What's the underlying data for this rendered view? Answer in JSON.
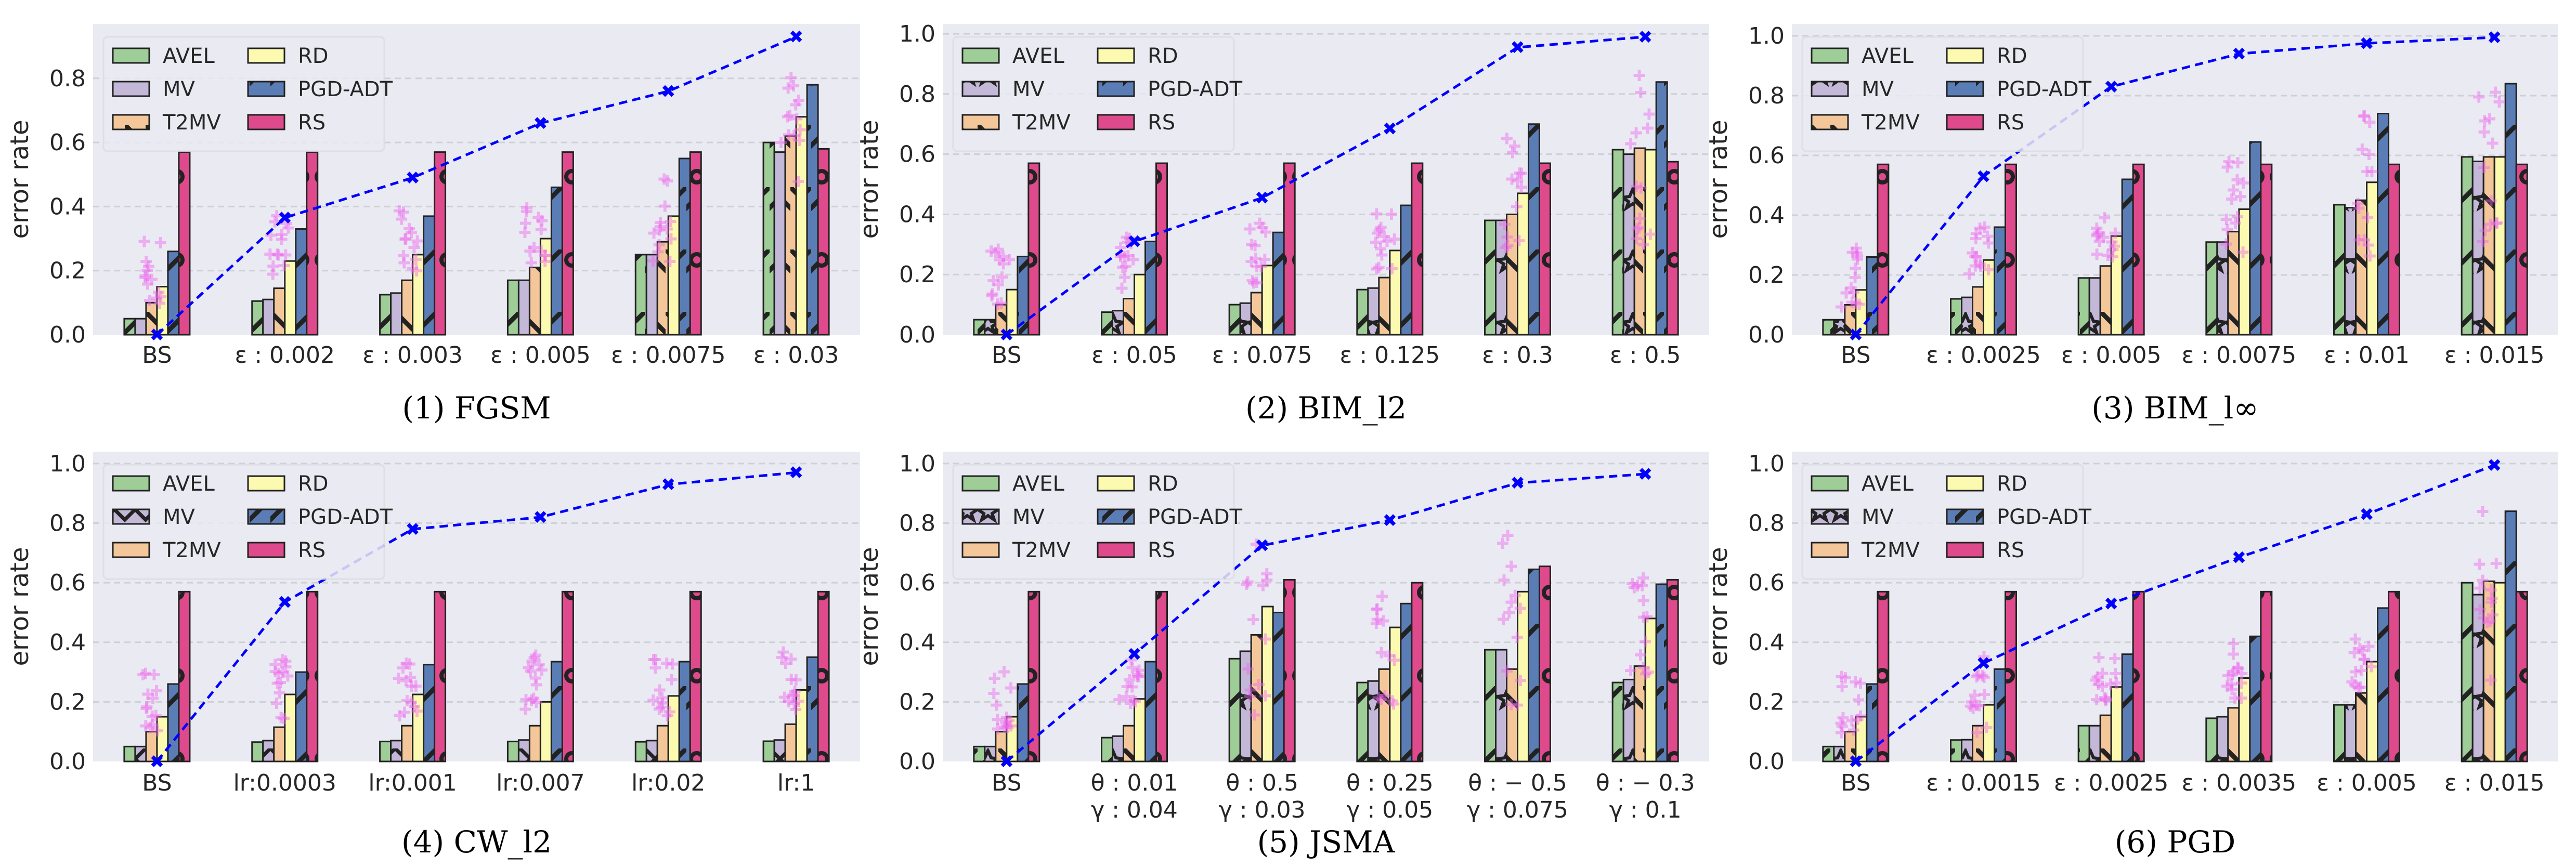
{
  "figure": {
    "legend_labels": [
      "AVEL",
      "MV",
      "T2MV",
      "RD",
      "PGD-ADT",
      "RS"
    ]
  },
  "chart_data": [
    {
      "type": "bar",
      "title": "(1) FGSM",
      "xlabel": "",
      "ylabel": "error rate",
      "ylim": [
        0,
        0.97
      ],
      "yticks": [
        0.0,
        0.2,
        0.4,
        0.6,
        0.8
      ],
      "ytick_labels": [
        "0.0",
        "0.2",
        "0.4",
        "0.6",
        "0.8"
      ],
      "grid": true,
      "legend": "top-left",
      "categories": [
        [
          "BS"
        ],
        [
          "ε : 0.002"
        ],
        [
          "ε : 0.003"
        ],
        [
          "ε : 0.005"
        ],
        [
          "ε : 0.0075"
        ],
        [
          "ε : 0.03"
        ]
      ],
      "series": [
        {
          "name": "AVEL",
          "color": "#9ecd97",
          "hatch": "/",
          "values": [
            0.05,
            0.105,
            0.125,
            0.17,
            0.25,
            0.6
          ]
        },
        {
          "name": "MV",
          "color": "#c3b8d8",
          "hatch": "",
          "values": [
            0.05,
            0.11,
            0.13,
            0.17,
            0.25,
            0.57
          ]
        },
        {
          "name": "T2MV",
          "color": "#f4c79a",
          "hatch": "\\",
          "values": [
            0.1,
            0.145,
            0.17,
            0.21,
            0.29,
            0.62
          ]
        },
        {
          "name": "RD",
          "color": "#fbfab0",
          "hatch": "",
          "values": [
            0.15,
            0.23,
            0.25,
            0.3,
            0.37,
            0.68
          ]
        },
        {
          "name": "PGD-ADT",
          "color": "#5b7db6",
          "hatch": "/",
          "values": [
            0.26,
            0.33,
            0.37,
            0.46,
            0.55,
            0.78
          ]
        },
        {
          "name": "RS",
          "color": "#de4a8b",
          "hatch": "o",
          "values": [
            0.57,
            0.57,
            0.57,
            0.57,
            0.57,
            0.58
          ]
        }
      ],
      "line": {
        "name": "attack success",
        "color": "#0000ff",
        "style": "dashed",
        "marker": "x",
        "values": [
          0.0,
          0.365,
          0.49,
          0.66,
          0.76,
          0.93
        ]
      },
      "scatter": {
        "color": "#ee66ee",
        "marker": "+",
        "ranges": [
          [
            0.09,
            0.31
          ],
          [
            0.17,
            0.37
          ],
          [
            0.19,
            0.39
          ],
          [
            0.22,
            0.44
          ],
          [
            0.22,
            0.49
          ],
          [
            0.45,
            0.83
          ]
        ]
      }
    },
    {
      "type": "bar",
      "title": "(2) BIM_l2",
      "xlabel": "",
      "ylabel": "error rate",
      "ylim": [
        0,
        1.033
      ],
      "yticks": [
        0.0,
        0.2,
        0.4,
        0.6,
        0.8,
        1.0
      ],
      "ytick_labels": [
        "0.0",
        "0.2",
        "0.4",
        "0.6",
        "0.8",
        "1.0"
      ],
      "grid": true,
      "legend": "top-left",
      "categories": [
        [
          "BS"
        ],
        [
          "ε : 0.05"
        ],
        [
          "ε : 0.075"
        ],
        [
          "ε : 0.125"
        ],
        [
          "ε : 0.3"
        ],
        [
          "ε : 0.5"
        ]
      ],
      "series": [
        {
          "name": "AVEL",
          "color": "#9ecd97",
          "hatch": "/",
          "values": [
            0.05,
            0.075,
            0.1,
            0.15,
            0.38,
            0.615
          ]
        },
        {
          "name": "MV",
          "color": "#c3b8d8",
          "hatch": "*",
          "values": [
            0.05,
            0.08,
            0.105,
            0.155,
            0.38,
            0.6
          ]
        },
        {
          "name": "T2MV",
          "color": "#f4c79a",
          "hatch": "\\",
          "values": [
            0.1,
            0.12,
            0.14,
            0.19,
            0.4,
            0.62
          ]
        },
        {
          "name": "RD",
          "color": "#fbfab0",
          "hatch": "",
          "values": [
            0.15,
            0.2,
            0.23,
            0.28,
            0.47,
            0.615
          ]
        },
        {
          "name": "PGD-ADT",
          "color": "#5b7db6",
          "hatch": "/",
          "values": [
            0.26,
            0.31,
            0.34,
            0.43,
            0.7,
            0.84
          ]
        },
        {
          "name": "RS",
          "color": "#de4a8b",
          "hatch": "o",
          "values": [
            0.57,
            0.57,
            0.57,
            0.57,
            0.57,
            0.575
          ]
        }
      ],
      "line": {
        "name": "attack success",
        "color": "#0000ff",
        "style": "dashed",
        "marker": "x",
        "values": [
          0.0,
          0.31,
          0.455,
          0.685,
          0.955,
          0.99
        ]
      },
      "scatter": {
        "color": "#ee66ee",
        "marker": "+",
        "ranges": [
          [
            0.09,
            0.3
          ],
          [
            0.13,
            0.35
          ],
          [
            0.16,
            0.37
          ],
          [
            0.2,
            0.41
          ],
          [
            0.28,
            0.66
          ],
          [
            0.28,
            0.86
          ]
        ]
      }
    },
    {
      "type": "bar",
      "title": "(3) BIM_l∞",
      "xlabel": "",
      "ylabel": "error rate",
      "ylim": [
        0,
        1.04
      ],
      "yticks": [
        0.0,
        0.2,
        0.4,
        0.6,
        0.8,
        1.0
      ],
      "ytick_labels": [
        "0.0",
        "0.2",
        "0.4",
        "0.6",
        "0.8",
        "1.0"
      ],
      "grid": true,
      "legend": "top-left",
      "categories": [
        [
          "BS"
        ],
        [
          "ε : 0.0025"
        ],
        [
          "ε : 0.005"
        ],
        [
          "ε : 0.0075"
        ],
        [
          "ε : 0.01"
        ],
        [
          "ε : 0.015"
        ]
      ],
      "series": [
        {
          "name": "AVEL",
          "color": "#9ecd97",
          "hatch": "/",
          "values": [
            0.05,
            0.12,
            0.19,
            0.31,
            0.435,
            0.595
          ]
        },
        {
          "name": "MV",
          "color": "#c3b8d8",
          "hatch": "*",
          "values": [
            0.05,
            0.125,
            0.19,
            0.31,
            0.425,
            0.58
          ]
        },
        {
          "name": "T2MV",
          "color": "#f4c79a",
          "hatch": "\\",
          "values": [
            0.1,
            0.16,
            0.23,
            0.345,
            0.45,
            0.595
          ]
        },
        {
          "name": "RD",
          "color": "#fbfab0",
          "hatch": "",
          "values": [
            0.15,
            0.25,
            0.33,
            0.42,
            0.51,
            0.595
          ]
        },
        {
          "name": "PGD-ADT",
          "color": "#5b7db6",
          "hatch": "/",
          "values": [
            0.26,
            0.36,
            0.52,
            0.645,
            0.74,
            0.84
          ]
        },
        {
          "name": "RS",
          "color": "#de4a8b",
          "hatch": "o",
          "values": [
            0.57,
            0.57,
            0.57,
            0.57,
            0.57,
            0.57
          ]
        }
      ],
      "line": {
        "name": "attack success",
        "color": "#0000ff",
        "style": "dashed",
        "marker": "x",
        "values": [
          0.0,
          0.53,
          0.83,
          0.94,
          0.975,
          0.995
        ]
      },
      "scatter": {
        "color": "#ee66ee",
        "marker": "+",
        "ranges": [
          [
            0.09,
            0.3
          ],
          [
            0.17,
            0.37
          ],
          [
            0.24,
            0.44
          ],
          [
            0.23,
            0.6
          ],
          [
            0.25,
            0.77
          ],
          [
            0.27,
            0.87
          ]
        ]
      }
    },
    {
      "type": "bar",
      "title": "(4) CW_l2",
      "xlabel": "",
      "ylabel": "error rate",
      "ylim": [
        0,
        1.04
      ],
      "yticks": [
        0.0,
        0.2,
        0.4,
        0.6,
        0.8,
        1.0
      ],
      "ytick_labels": [
        "0.0",
        "0.2",
        "0.4",
        "0.6",
        "0.8",
        "1.0"
      ],
      "grid": true,
      "legend": "top-left",
      "categories": [
        [
          "BS"
        ],
        [
          "lr:0.0003"
        ],
        [
          "lr:0.001"
        ],
        [
          "lr:0.007"
        ],
        [
          "lr:0.02"
        ],
        [
          "lr:1"
        ]
      ],
      "series": [
        {
          "name": "AVEL",
          "color": "#9ecd97",
          "hatch": "",
          "values": [
            0.05,
            0.065,
            0.067,
            0.067,
            0.066,
            0.068
          ]
        },
        {
          "name": "MV",
          "color": "#c3b8d8",
          "hatch": "x",
          "values": [
            0.05,
            0.07,
            0.07,
            0.072,
            0.07,
            0.072
          ]
        },
        {
          "name": "T2MV",
          "color": "#f4c79a",
          "hatch": "",
          "values": [
            0.1,
            0.115,
            0.12,
            0.12,
            0.12,
            0.125
          ]
        },
        {
          "name": "RD",
          "color": "#fbfab0",
          "hatch": "",
          "values": [
            0.15,
            0.225,
            0.225,
            0.2,
            0.22,
            0.24
          ]
        },
        {
          "name": "PGD-ADT",
          "color": "#5b7db6",
          "hatch": "/",
          "values": [
            0.26,
            0.3,
            0.325,
            0.335,
            0.335,
            0.35
          ]
        },
        {
          "name": "RS",
          "color": "#de4a8b",
          "hatch": "o",
          "values": [
            0.57,
            0.57,
            0.57,
            0.57,
            0.57,
            0.57
          ]
        }
      ],
      "line": {
        "name": "attack success",
        "color": "#0000ff",
        "style": "dashed",
        "marker": "x",
        "values": [
          0.0,
          0.535,
          0.78,
          0.82,
          0.93,
          0.97
        ]
      },
      "scatter": {
        "color": "#ee66ee",
        "marker": "+",
        "ranges": [
          [
            0.1,
            0.3
          ],
          [
            0.13,
            0.34
          ],
          [
            0.14,
            0.36
          ],
          [
            0.14,
            0.37
          ],
          [
            0.14,
            0.37
          ],
          [
            0.15,
            0.37
          ]
        ]
      }
    },
    {
      "type": "bar",
      "title": "(5) JSMA",
      "xlabel": "",
      "ylabel": "error rate",
      "ylim": [
        0,
        1.04
      ],
      "yticks": [
        0.0,
        0.2,
        0.4,
        0.6,
        0.8,
        1.0
      ],
      "ytick_labels": [
        "0.0",
        "0.2",
        "0.4",
        "0.6",
        "0.8",
        "1.0"
      ],
      "grid": true,
      "legend": "top-left",
      "categories": [
        [
          "BS"
        ],
        [
          "θ : 0.01",
          "γ : 0.04"
        ],
        [
          "θ : 0.5",
          "γ : 0.03"
        ],
        [
          "θ : 0.25",
          "γ : 0.05"
        ],
        [
          "θ : − 0.5",
          "γ : 0.075"
        ],
        [
          "θ : − 0.3",
          "γ : 0.1"
        ]
      ],
      "series": [
        {
          "name": "AVEL",
          "color": "#9ecd97",
          "hatch": "/",
          "values": [
            0.05,
            0.08,
            0.345,
            0.265,
            0.375,
            0.265
          ]
        },
        {
          "name": "MV",
          "color": "#c3b8d8",
          "hatch": "*",
          "values": [
            0.05,
            0.085,
            0.37,
            0.27,
            0.375,
            0.275
          ]
        },
        {
          "name": "T2MV",
          "color": "#f4c79a",
          "hatch": "\\",
          "values": [
            0.1,
            0.12,
            0.425,
            0.31,
            0.31,
            0.32
          ]
        },
        {
          "name": "RD",
          "color": "#fbfab0",
          "hatch": "",
          "values": [
            0.15,
            0.21,
            0.52,
            0.45,
            0.57,
            0.48
          ]
        },
        {
          "name": "PGD-ADT",
          "color": "#5b7db6",
          "hatch": "/",
          "values": [
            0.26,
            0.335,
            0.5,
            0.53,
            0.645,
            0.595
          ]
        },
        {
          "name": "RS",
          "color": "#de4a8b",
          "hatch": "o",
          "values": [
            0.57,
            0.57,
            0.61,
            0.6,
            0.655,
            0.61
          ]
        }
      ],
      "line": {
        "name": "attack success",
        "color": "#0000ff",
        "style": "dashed",
        "marker": "x",
        "values": [
          0.0,
          0.36,
          0.725,
          0.81,
          0.935,
          0.965
        ]
      },
      "scatter": {
        "color": "#ee66ee",
        "marker": "+",
        "ranges": [
          [
            0.09,
            0.3
          ],
          [
            0.15,
            0.35
          ],
          [
            0.15,
            0.75
          ],
          [
            0.17,
            0.62
          ],
          [
            0.17,
            0.76
          ],
          [
            0.17,
            0.64
          ]
        ]
      }
    },
    {
      "type": "bar",
      "title": "(6) PGD",
      "xlabel": "",
      "ylabel": "error rate",
      "ylim": [
        0,
        1.04
      ],
      "yticks": [
        0.0,
        0.2,
        0.4,
        0.6,
        0.8,
        1.0
      ],
      "ytick_labels": [
        "0.0",
        "0.2",
        "0.4",
        "0.6",
        "0.8",
        "1.0"
      ],
      "grid": true,
      "legend": "top-left",
      "categories": [
        [
          "BS"
        ],
        [
          "ε : 0.0015"
        ],
        [
          "ε : 0.0025"
        ],
        [
          "ε : 0.0035"
        ],
        [
          "ε : 0.005"
        ],
        [
          "ε : 0.015"
        ]
      ],
      "series": [
        {
          "name": "AVEL",
          "color": "#9ecd97",
          "hatch": "/",
          "values": [
            0.05,
            0.072,
            0.12,
            0.145,
            0.19,
            0.6
          ]
        },
        {
          "name": "MV",
          "color": "#c3b8d8",
          "hatch": "*",
          "values": [
            0.05,
            0.073,
            0.12,
            0.15,
            0.19,
            0.56
          ]
        },
        {
          "name": "T2MV",
          "color": "#f4c79a",
          "hatch": "\\",
          "values": [
            0.1,
            0.12,
            0.155,
            0.18,
            0.23,
            0.605
          ]
        },
        {
          "name": "RD",
          "color": "#fbfab0",
          "hatch": "",
          "values": [
            0.15,
            0.19,
            0.25,
            0.28,
            0.335,
            0.6
          ]
        },
        {
          "name": "PGD-ADT",
          "color": "#5b7db6",
          "hatch": "/",
          "values": [
            0.26,
            0.31,
            0.36,
            0.42,
            0.515,
            0.84
          ]
        },
        {
          "name": "RS",
          "color": "#de4a8b",
          "hatch": "o",
          "values": [
            0.57,
            0.57,
            0.57,
            0.57,
            0.57,
            0.57
          ]
        }
      ],
      "line": {
        "name": "attack success",
        "color": "#0000ff",
        "style": "dashed",
        "marker": "x",
        "values": [
          0.0,
          0.33,
          0.53,
          0.685,
          0.83,
          0.995
        ]
      },
      "scatter": {
        "color": "#ee66ee",
        "marker": "+",
        "ranges": [
          [
            0.09,
            0.3
          ],
          [
            0.09,
            0.35
          ],
          [
            0.19,
            0.37
          ],
          [
            0.2,
            0.4
          ],
          [
            0.2,
            0.44
          ],
          [
            0.27,
            0.87
          ]
        ]
      }
    }
  ]
}
